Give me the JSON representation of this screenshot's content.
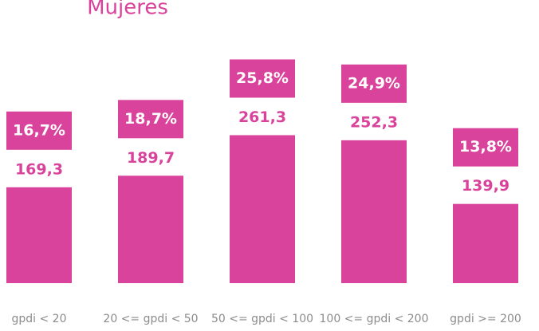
{
  "chart_data": {
    "type": "bar",
    "title": "Mujeres",
    "categories": [
      "gpdi < 20",
      "20 <= gpdi < 50",
      "50 <= gpdi < 100",
      "100 <= gpdi < 200",
      "gpdi >= 200"
    ],
    "values": [
      169.3,
      189.7,
      261.3,
      252.3,
      139.9
    ],
    "value_labels": [
      "169,3",
      "189,7",
      "261,3",
      "252,3",
      "139,9"
    ],
    "shares": [
      16.7,
      18.7,
      25.8,
      24.9,
      13.8
    ],
    "share_labels": [
      "16,7%",
      "18,7%",
      "25,8%",
      "24,9%",
      "13,8%"
    ],
    "color": "#d9439b",
    "ylim": [
      0,
      500
    ]
  }
}
